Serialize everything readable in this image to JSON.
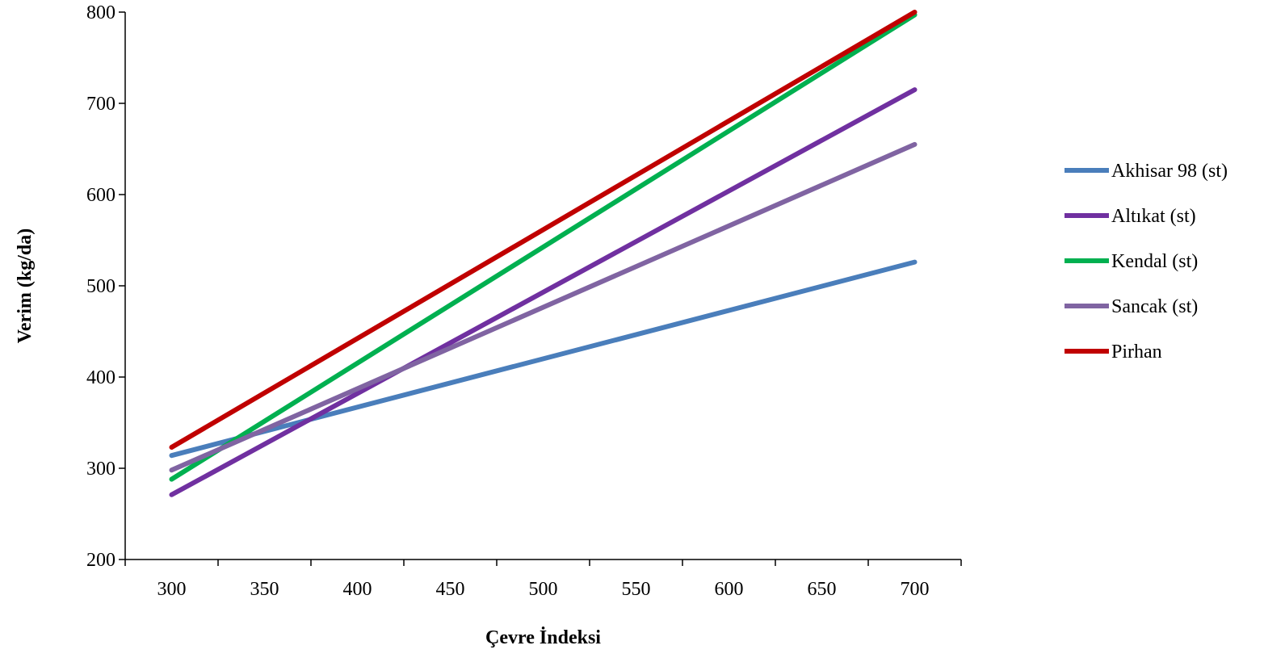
{
  "chart_data": {
    "type": "line",
    "title": "",
    "xlabel": "Çevre İndeksi",
    "ylabel": "Verim (kg/da)",
    "x": [
      300,
      700
    ],
    "xlim": [
      275,
      725
    ],
    "ylim": [
      200,
      800
    ],
    "xticks": [
      300,
      350,
      400,
      450,
      500,
      550,
      600,
      650,
      700
    ],
    "yticks": [
      200,
      300,
      400,
      500,
      600,
      700,
      800
    ],
    "grid": false,
    "legend": "right",
    "series": [
      {
        "name": "Akhisar 98 (st)",
        "color": "#4a7ebb",
        "values": [
          314,
          526
        ]
      },
      {
        "name": "Altıkat (st)",
        "color": "#7030a0",
        "values": [
          271,
          715
        ]
      },
      {
        "name": "Kendal (st)",
        "color": "#00b050",
        "values": [
          288,
          797
        ]
      },
      {
        "name": "Sancak (st)",
        "color": "#8064a2",
        "values": [
          298,
          655
        ]
      },
      {
        "name": "Pirhan",
        "color": "#c00000",
        "values": [
          323,
          800
        ]
      }
    ]
  }
}
